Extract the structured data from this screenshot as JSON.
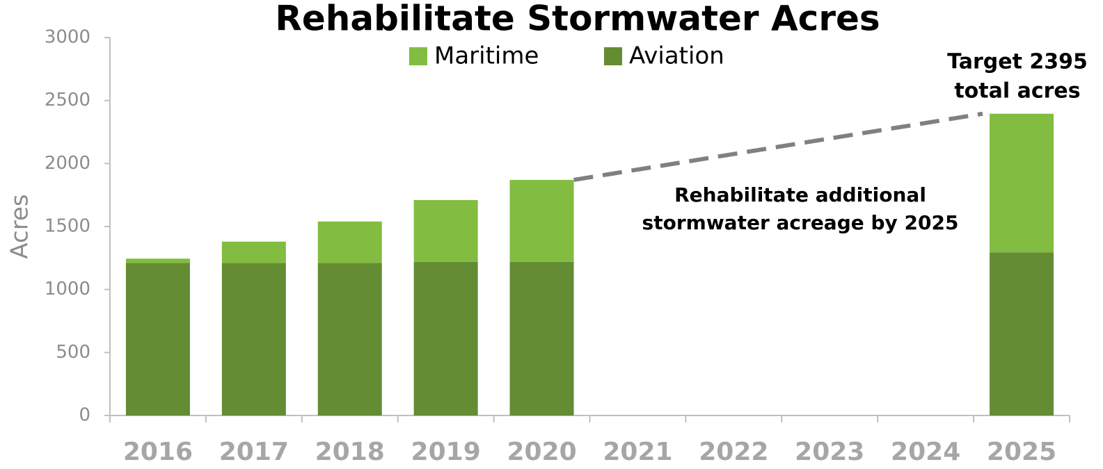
{
  "chart_data": {
    "type": "stacked_bar",
    "title": "Rehabilitate Stormwater Acres",
    "y_label": "Acres",
    "categories": [
      "2016",
      "2017",
      "2018",
      "2019",
      "2020",
      "2021",
      "2022",
      "2023",
      "2024",
      "2025"
    ],
    "series": [
      {
        "name": "Maritime",
        "color": "#82bc41",
        "values": [
          35,
          170,
          330,
          490,
          650,
          null,
          null,
          null,
          null,
          1100
        ]
      },
      {
        "name": "Aviation",
        "color": "#648c33",
        "values": [
          1210,
          1210,
          1210,
          1220,
          1220,
          null,
          null,
          null,
          null,
          1295
        ]
      }
    ],
    "ylim": [
      0,
      3000
    ],
    "yticks": [
      0,
      500,
      1000,
      1500,
      2000,
      2500,
      3000
    ],
    "annotations": [
      [
        "Target 2395",
        "total acres"
      ],
      [
        "Rehabilitate additional",
        "stormwater acreage by 2025"
      ]
    ],
    "legend": "top"
  }
}
